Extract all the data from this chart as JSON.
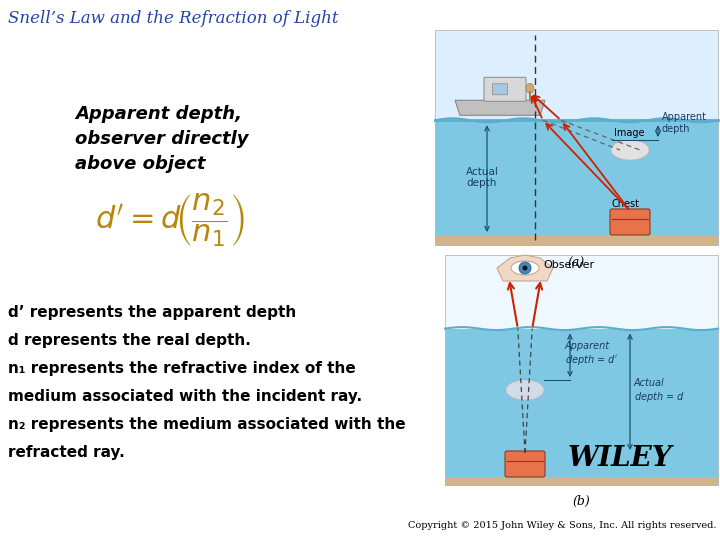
{
  "title": "Snell’s Law and the Refraction of Light",
  "title_color": "#2244aa",
  "title_fontsize": 12,
  "bg_color": "#ffffff",
  "heading_text": "Apparent depth,\nobserver directly\nabove object",
  "heading_fontsize": 13,
  "desc_lines": [
    "d’ represents the apparent depth",
    "d represents the real depth.",
    "n₁ represents the refractive index of the",
    "medium associated with the incident ray.",
    "n₂ represents the medium associated with the",
    "refracted ray."
  ],
  "desc_fontsize": 11,
  "copyright_text": "Copyright © 2015 John Wiley & Sons, Inc. All rights reserved.",
  "copyright_fontsize": 7,
  "wiley_fontsize": 20,
  "water_color_a": "#7ec8e3",
  "water_color_b": "#7ec8e3",
  "sky_color": "#ddeeff",
  "sand_color": "#d2b48c",
  "chest_color": "#e8734a",
  "image_ghost_color": "#f5e6e0",
  "ray_color": "#cc2200",
  "dashed_ray_color": "#444444",
  "arrow_color": "#1a5276",
  "label_color": "#1a3a6a"
}
